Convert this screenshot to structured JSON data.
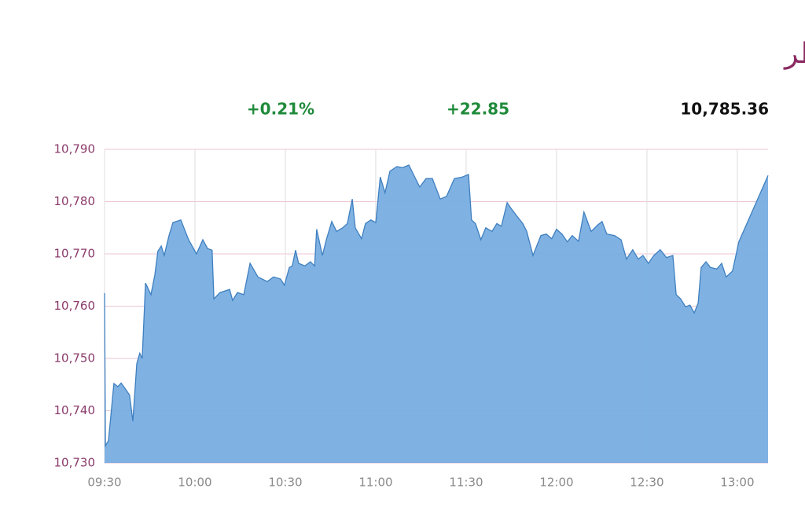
{
  "chart_data": {
    "type": "area",
    "title": "مؤشر بورصة قطر",
    "stats": [
      "+0.21%",
      "+22.85",
      "10,785.36"
    ],
    "fill_color": "#78aee0",
    "line_color": "#3f7fc0",
    "grid": true,
    "x": [
      570,
      570.3,
      571.3,
      573.1,
      574.4,
      575.5,
      577.0,
      578.3,
      579.4,
      580.7,
      581.7,
      582.5,
      583.6,
      585.4,
      586.7,
      587.7,
      588.8,
      589.8,
      591.4,
      592.7,
      595.3,
      597.9,
      600.5,
      602.6,
      604.2,
      605.7,
      606.3,
      608.3,
      611.5,
      612.5,
      614.1,
      616.2,
      618.3,
      620.9,
      624.0,
      626.1,
      628.4,
      629.7,
      631.3,
      632.3,
      633.4,
      634.4,
      636.5,
      638.3,
      639.7,
      640.4,
      642.3,
      643.6,
      645.4,
      647.0,
      649.0,
      650.6,
      652.2,
      653.2,
      655.3,
      656.6,
      658.4,
      660.0,
      661.5,
      663.1,
      664.7,
      667.0,
      668.9,
      671.0,
      672.5,
      674.6,
      676.7,
      678.8,
      681.4,
      683.5,
      686.1,
      688.7,
      690.8,
      691.8,
      693.1,
      694.9,
      696.5,
      698.6,
      700.2,
      701.7,
      703.6,
      704.9,
      706.9,
      708.8,
      710.1,
      712.2,
      714.8,
      716.6,
      718.4,
      720.0,
      721.8,
      723.6,
      725.2,
      727.3,
      729.1,
      731.5,
      733.6,
      735.1,
      736.7,
      739.3,
      741.4,
      743.2,
      745.3,
      747.1,
      748.7,
      750.5,
      752.3,
      754.4,
      756.5,
      758.6,
      759.7,
      761.2,
      762.8,
      764.3,
      765.7,
      767.0,
      768.0,
      769.6,
      771.1,
      773.2,
      774.8,
      776.3,
      778.4,
      779.7,
      780.5,
      790.2
    ],
    "values": [
      10762.5,
      10733.3,
      10734.3,
      10745.2,
      10744.6,
      10745.3,
      10744.1,
      10743,
      10738,
      10749,
      10751,
      10750,
      10764.4,
      10762.2,
      10766,
      10770.5,
      10771.5,
      10769.7,
      10773.5,
      10776,
      10776.5,
      10772.7,
      10770,
      10772.7,
      10771,
      10770.7,
      10761.4,
      10762.6,
      10763.2,
      10761.1,
      10762.6,
      10762.2,
      10768.2,
      10765.6,
      10764.7,
      10765.6,
      10765.2,
      10764,
      10767.4,
      10767.7,
      10770.7,
      10768.2,
      10767.7,
      10768.5,
      10767.7,
      10774.7,
      10769.7,
      10772.7,
      10776.2,
      10774.3,
      10775,
      10775.8,
      10780.5,
      10775,
      10772.9,
      10775.8,
      10776.5,
      10776,
      10784.7,
      10781.7,
      10785.8,
      10786.7,
      10786.5,
      10787,
      10785.2,
      10782.8,
      10784.4,
      10784.4,
      10780.5,
      10781,
      10784.4,
      10784.7,
      10785.2,
      10776.5,
      10775.8,
      10772.7,
      10775,
      10774.3,
      10775.8,
      10775.3,
      10779.8,
      10778.7,
      10777.2,
      10775.8,
      10774.3,
      10769.7,
      10773.5,
      10773.8,
      10772.9,
      10774.7,
      10773.8,
      10772.3,
      10773.5,
      10772.4,
      10778,
      10774.3,
      10775.5,
      10776.2,
      10773.8,
      10773.5,
      10772.7,
      10769,
      10770.8,
      10769,
      10769.7,
      10768.2,
      10769.7,
      10770.8,
      10769.3,
      10769.7,
      10762.2,
      10761.4,
      10759.9,
      10760.2,
      10758.7,
      10760.6,
      10767.4,
      10768.5,
      10767.4,
      10767.1,
      10768.2,
      10765.6,
      10766.7,
      10770.2,
      10772.3,
      10785
    ],
    "xlim": [
      570,
      790.2
    ],
    "xticks": [
      {
        "value": 570,
        "label": "09:30"
      },
      {
        "value": 600,
        "label": "10:00"
      },
      {
        "value": 630,
        "label": "10:30"
      },
      {
        "value": 660,
        "label": "11:00"
      },
      {
        "value": 690,
        "label": "11:30"
      },
      {
        "value": 720,
        "label": "12:00"
      },
      {
        "value": 750,
        "label": "12:30"
      },
      {
        "value": 780,
        "label": "13:00"
      }
    ],
    "ylim": [
      10730,
      10790
    ],
    "yticks": [
      {
        "value": 10730,
        "label": "10,730"
      },
      {
        "value": 10740,
        "label": "10,740"
      },
      {
        "value": 10750,
        "label": "10,750"
      },
      {
        "value": 10760,
        "label": "10,760"
      },
      {
        "value": 10770,
        "label": "10,770"
      },
      {
        "value": 10780,
        "label": "10,780"
      },
      {
        "value": 10790,
        "label": "10,790"
      }
    ]
  }
}
